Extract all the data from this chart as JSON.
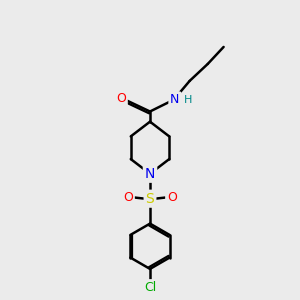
{
  "bg_color": "#ebebeb",
  "atom_colors": {
    "C": "#000000",
    "N": "#0000ee",
    "O": "#ff0000",
    "S": "#cccc00",
    "Cl": "#00aa00",
    "H": "#008888"
  },
  "bond_color": "#000000",
  "bond_width": 1.8
}
